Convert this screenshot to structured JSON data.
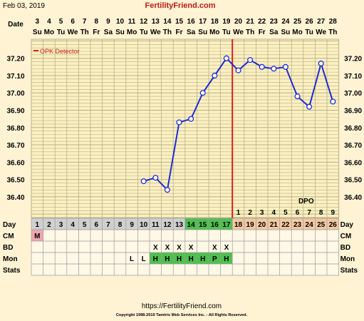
{
  "header": {
    "date_text": "Feb 03, 2019",
    "site": "FertilityFriend.com"
  },
  "row_labels": {
    "date": "Date",
    "day": "Day",
    "cm": "CM",
    "bd": "BD",
    "mon": "Mon",
    "stats": "Stats"
  },
  "dates": [
    "3",
    "4",
    "5",
    "6",
    "7",
    "8",
    "9",
    "10",
    "11",
    "12",
    "13",
    "14",
    "15",
    "16",
    "17",
    "18",
    "19",
    "20",
    "21",
    "22",
    "23",
    "24",
    "25",
    "26",
    "27",
    "28"
  ],
  "weekdays": [
    "Su",
    "Mo",
    "Tu",
    "We",
    "Th",
    "Fr",
    "Sa",
    "Su",
    "Mo",
    "Tu",
    "We",
    "Th",
    "Fr",
    "Sa",
    "Su",
    "Mo",
    "Tu",
    "We",
    "Th",
    "Fr",
    "Sa",
    "Su",
    "Mo",
    "Tu",
    "We",
    "Th"
  ],
  "cycle_days": [
    "1",
    "2",
    "3",
    "4",
    "5",
    "6",
    "7",
    "8",
    "9",
    "10",
    "11",
    "12",
    "13",
    "14",
    "15",
    "16",
    "17",
    "18",
    "19",
    "20",
    "21",
    "22",
    "23",
    "24",
    "25",
    "26"
  ],
  "dpo_label": "DPO",
  "dpo_days": [
    "1",
    "2",
    "3",
    "4",
    "5",
    "6",
    "7",
    "8",
    "9"
  ],
  "cm": {
    "day": 1,
    "value": "M"
  },
  "bd": [
    {
      "day": 11,
      "value": "X"
    },
    {
      "day": 12,
      "value": "X"
    },
    {
      "day": 13,
      "value": "X"
    },
    {
      "day": 14,
      "value": "X"
    },
    {
      "day": 16,
      "value": "X"
    },
    {
      "day": 17,
      "value": "X"
    }
  ],
  "mon": [
    {
      "day": 9,
      "value": "L"
    },
    {
      "day": 10,
      "value": "L"
    },
    {
      "day": 11,
      "value": "H"
    },
    {
      "day": 12,
      "value": "H"
    },
    {
      "day": 13,
      "value": "H"
    },
    {
      "day": 14,
      "value": "H"
    },
    {
      "day": 15,
      "value": "H"
    },
    {
      "day": 16,
      "value": "P"
    },
    {
      "day": 17,
      "value": "H"
    }
  ],
  "footer": {
    "url": "https://FertilityFriend.com",
    "copyright": "Copyright 1998-2019 Tamtris Web Services Inc. - All Rights Reserved."
  },
  "colors": {
    "line": "#1f2bd4",
    "ovulation_line": "#d42020",
    "grid": "#b9b089",
    "chart_bg": "#fbf0c0",
    "fertile_green": "#4fc04f",
    "luteal_orange": "#f3c9a1",
    "cm_pink": "#f0a6b0",
    "day_gray": "#d0d0d0"
  },
  "chart_data": {
    "type": "line",
    "legend": "OPK Detector",
    "x": [
      10,
      11,
      12,
      13,
      14,
      15,
      16,
      17,
      18,
      19,
      20,
      21,
      22,
      23,
      24,
      25,
      26
    ],
    "values": [
      36.49,
      36.51,
      36.44,
      36.83,
      36.85,
      37.0,
      37.1,
      37.2,
      37.13,
      37.19,
      37.15,
      37.14,
      37.15,
      36.98,
      36.92,
      37.17,
      36.95
    ],
    "y_ticks": [
      "37.20",
      "37.10",
      "37.00",
      "36.90",
      "36.80",
      "36.70",
      "36.60",
      "36.50",
      "36.40"
    ],
    "y_tick_values": [
      37.2,
      37.1,
      37.0,
      36.9,
      36.8,
      36.7,
      36.6,
      36.5,
      36.4
    ],
    "ylim": [
      36.28,
      37.31
    ],
    "xlim": [
      1,
      26
    ],
    "ovulation_day": 17
  }
}
